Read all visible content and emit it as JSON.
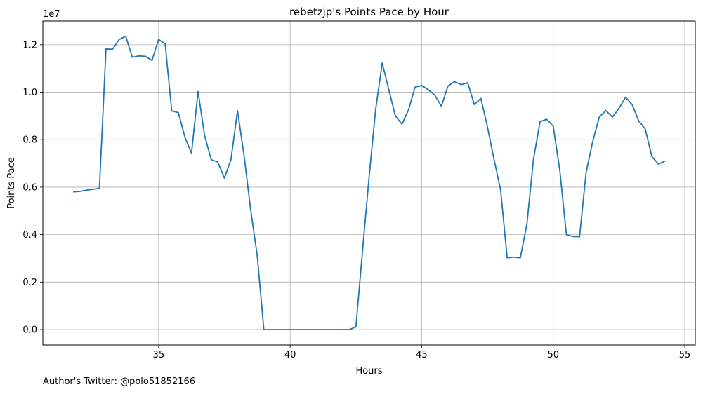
{
  "chart_data": {
    "type": "line",
    "title": "rebetzjp's Points Pace by Hour",
    "xlabel": "Hours",
    "ylabel": "Points Pace",
    "y_offset_label": "1e7",
    "xlim": [
      30.6,
      55.4
    ],
    "ylim": [
      -0.065,
      1.3
    ],
    "y_scale": 10000000,
    "grid": true,
    "xticks": [
      35,
      40,
      45,
      50,
      55
    ],
    "yticks": [
      0.0,
      0.2,
      0.4,
      0.6,
      0.8,
      1.0,
      1.2
    ],
    "xtick_labels": [
      "35",
      "40",
      "45",
      "50",
      "55"
    ],
    "ytick_labels": [
      "0.0",
      "0.2",
      "0.4",
      "0.6",
      "0.8",
      "1.0",
      "1.2"
    ],
    "series": [
      {
        "color": "#1f77b4",
        "x": [
          31.75,
          32.0,
          32.25,
          32.5,
          32.75,
          33.0,
          33.25,
          33.5,
          33.75,
          34.0,
          34.25,
          34.5,
          34.75,
          35.0,
          35.25,
          35.5,
          35.75,
          36.0,
          36.25,
          36.5,
          36.75,
          37.0,
          37.25,
          37.5,
          37.75,
          38.0,
          38.25,
          38.5,
          38.75,
          39.0,
          39.25,
          39.5,
          39.75,
          40.0,
          40.25,
          40.5,
          40.75,
          41.0,
          41.25,
          41.5,
          41.75,
          42.0,
          42.25,
          42.5,
          42.75,
          43.0,
          43.25,
          43.5,
          43.75,
          44.0,
          44.25,
          44.5,
          44.75,
          45.0,
          45.25,
          45.5,
          45.75,
          46.0,
          46.25,
          46.5,
          46.75,
          47.0,
          47.25,
          47.5,
          47.75,
          48.0,
          48.25,
          48.5,
          48.75,
          49.0,
          49.25,
          49.5,
          49.75,
          50.0,
          50.25,
          50.5,
          50.75,
          51.0,
          51.25,
          51.5,
          51.75,
          52.0,
          52.25,
          52.5,
          52.75,
          53.0,
          53.25,
          53.5,
          53.75,
          54.0,
          54.25
        ],
        "y": [
          0.58,
          0.582,
          0.587,
          0.591,
          0.595,
          1.182,
          1.181,
          1.222,
          1.236,
          1.147,
          1.153,
          1.151,
          1.134,
          1.223,
          1.203,
          0.921,
          0.914,
          0.811,
          0.743,
          1.003,
          0.817,
          0.716,
          0.706,
          0.638,
          0.716,
          0.922,
          0.732,
          0.504,
          0.311,
          0.0,
          0.0,
          0.0,
          0.0,
          0.0,
          0.0,
          0.0,
          0.0,
          0.0,
          0.0,
          0.0,
          0.0,
          0.0,
          0.0,
          0.011,
          0.33,
          0.641,
          0.927,
          1.123,
          1.011,
          0.9,
          0.865,
          0.926,
          1.022,
          1.028,
          1.011,
          0.987,
          0.941,
          1.026,
          1.045,
          1.032,
          1.04,
          0.948,
          0.974,
          0.854,
          0.717,
          0.588,
          0.302,
          0.305,
          0.302,
          0.445,
          0.718,
          0.876,
          0.886,
          0.857,
          0.671,
          0.4,
          0.392,
          0.391,
          0.662,
          0.792,
          0.895,
          0.923,
          0.895,
          0.932,
          0.979,
          0.948,
          0.879,
          0.844,
          0.729,
          0.697,
          0.71
        ]
      }
    ]
  },
  "footer": {
    "text": "Author's Twitter: @polo51852166"
  }
}
